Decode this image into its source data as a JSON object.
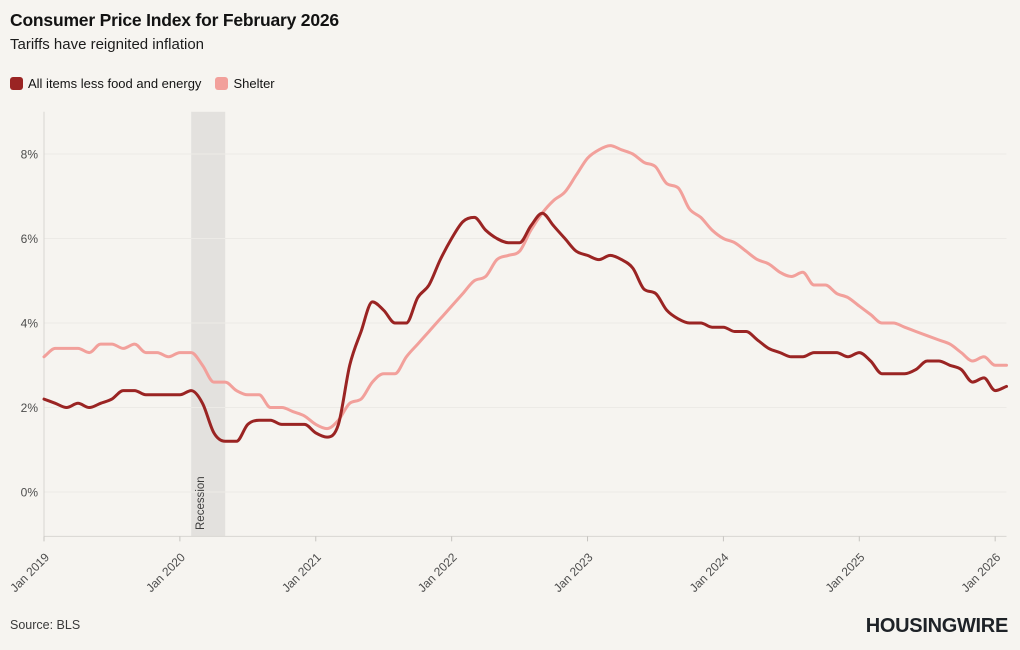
{
  "header": {
    "title": "Consumer Price Index for February 2026",
    "subtitle": "Tariffs have reignited inflation"
  },
  "legend": [
    {
      "label": "All items less food and energy",
      "color": "#9a2423"
    },
    {
      "label": "Shelter",
      "color": "#f2a09b"
    }
  ],
  "footer": {
    "source": "Source: BLS",
    "brand": "HOUSINGWIRE"
  },
  "chart_data": {
    "type": "line",
    "title": "Consumer Price Index for February 2026",
    "subtitle": "Tariffs have reignited inflation",
    "x_start_label": "Jan 2019",
    "x_end_label": "Feb 2026",
    "frequency": "monthly",
    "x_tick_labels": [
      "Jan 2019",
      "Jan 2020",
      "Jan 2021",
      "Jan 2022",
      "Jan 2023",
      "Jan 2024",
      "Jan 2025",
      "Jan 2026"
    ],
    "x_tick_indices": [
      0,
      12,
      24,
      36,
      48,
      60,
      72,
      84
    ],
    "y_ticks": [
      0,
      2,
      4,
      6,
      8
    ],
    "y_tick_suffix": "%",
    "ylim": [
      -1.05,
      9.0
    ],
    "grid": "horizontal",
    "legend_position": "top-left",
    "colors": {
      "background": "#f6f4f0",
      "gridline": "#eceae6",
      "axis_line": "#d8d6d2",
      "tick": "#c5c3bf",
      "tick_label": "#4d4d4d",
      "band": "#e3e1de",
      "band_label": "#3d3d3d"
    },
    "annotations": [
      {
        "label": "Recession",
        "start_month_index": 13,
        "end_month_index": 16
      }
    ],
    "series": [
      {
        "name": "Shelter",
        "color": "#f2a09b",
        "values": [
          3.2,
          3.4,
          3.4,
          3.4,
          3.3,
          3.5,
          3.5,
          3.4,
          3.5,
          3.3,
          3.3,
          3.2,
          3.3,
          3.3,
          3.0,
          2.6,
          2.6,
          2.4,
          2.3,
          2.3,
          2.0,
          2.0,
          1.9,
          1.8,
          1.6,
          1.5,
          1.7,
          2.1,
          2.2,
          2.6,
          2.8,
          2.8,
          3.2,
          3.5,
          3.8,
          4.1,
          4.4,
          4.7,
          5.0,
          5.1,
          5.5,
          5.6,
          5.7,
          6.2,
          6.6,
          6.9,
          7.1,
          7.5,
          7.9,
          8.1,
          8.2,
          8.1,
          8.0,
          7.8,
          7.7,
          7.3,
          7.2,
          6.7,
          6.5,
          6.2,
          6.0,
          5.9,
          5.7,
          5.5,
          5.4,
          5.2,
          5.1,
          5.2,
          4.9,
          4.9,
          4.7,
          4.6,
          4.4,
          4.2,
          4.0,
          4.0,
          3.9,
          3.8,
          3.7,
          3.6,
          3.5,
          3.3,
          3.1,
          3.2,
          3.0,
          3.0
        ]
      },
      {
        "name": "All items less food and energy",
        "color": "#9a2423",
        "values": [
          2.2,
          2.1,
          2.0,
          2.1,
          2.0,
          2.1,
          2.2,
          2.4,
          2.4,
          2.3,
          2.3,
          2.3,
          2.3,
          2.4,
          2.1,
          1.4,
          1.2,
          1.2,
          1.6,
          1.7,
          1.7,
          1.6,
          1.6,
          1.6,
          1.4,
          1.3,
          1.6,
          3.0,
          3.8,
          4.5,
          4.3,
          4.0,
          4.0,
          4.6,
          4.9,
          5.5,
          6.0,
          6.4,
          6.5,
          6.2,
          6.0,
          5.9,
          5.9,
          6.3,
          6.6,
          6.3,
          6.0,
          5.7,
          5.6,
          5.5,
          5.6,
          5.5,
          5.3,
          4.8,
          4.7,
          4.3,
          4.1,
          4.0,
          4.0,
          3.9,
          3.9,
          3.8,
          3.8,
          3.6,
          3.4,
          3.3,
          3.2,
          3.2,
          3.3,
          3.3,
          3.3,
          3.2,
          3.3,
          3.1,
          2.8,
          2.8,
          2.8,
          2.9,
          3.1,
          3.1,
          3.0,
          2.9,
          2.6,
          2.7,
          2.4,
          2.5
        ]
      }
    ]
  }
}
